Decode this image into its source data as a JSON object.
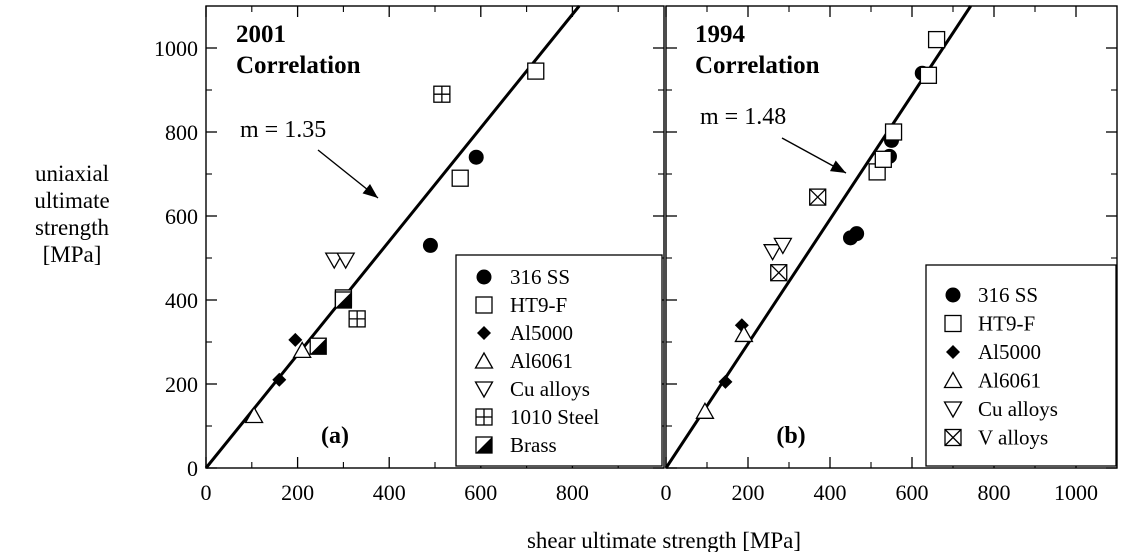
{
  "y_axis_title_lines": [
    "uniaxial",
    "ultimate",
    "strength",
    "[MPa]"
  ],
  "x_axis_title": "shear ultimate strength [MPa]",
  "chart_data": [
    {
      "type": "scatter",
      "panel_tag": "(a)",
      "title_lines": [
        "2001",
        "Correlation"
      ],
      "slope_label": "m = 1.35",
      "slope": 1.35,
      "xlim": [
        0,
        1000
      ],
      "ylim": [
        0,
        1100
      ],
      "x_ticks": [
        0,
        200,
        400,
        600,
        800
      ],
      "y_ticks": [
        0,
        200,
        400,
        600,
        800,
        1000
      ],
      "legend_position": "bottom-right",
      "series": [
        {
          "name": "316 SS",
          "marker": "circle",
          "points": [
            [
              490,
              530
            ],
            [
              590,
              740
            ]
          ]
        },
        {
          "name": "HT9-F",
          "marker": "square",
          "points": [
            [
              300,
              405
            ],
            [
              555,
              690
            ],
            [
              720,
              945
            ]
          ]
        },
        {
          "name": "Al5000",
          "marker": "diamond",
          "points": [
            [
              160,
              210
            ],
            [
              195,
              305
            ]
          ]
        },
        {
          "name": "Al6061",
          "marker": "triangle-up",
          "points": [
            [
              105,
              125
            ],
            [
              210,
              280
            ]
          ]
        },
        {
          "name": "Cu alloys",
          "marker": "triangle-down",
          "points": [
            [
              280,
              495
            ],
            [
              305,
              495
            ]
          ]
        },
        {
          "name": "1010 Steel",
          "marker": "square-plus",
          "points": [
            [
              515,
              890
            ],
            [
              330,
              355
            ]
          ]
        },
        {
          "name": "Brass",
          "marker": "half-square",
          "points": [
            [
              245,
              290
            ],
            [
              300,
              400
            ]
          ]
        }
      ]
    },
    {
      "type": "scatter",
      "panel_tag": "(b)",
      "title_lines": [
        "1994",
        "Correlation"
      ],
      "slope_label": "m = 1.48",
      "slope": 1.48,
      "xlim": [
        0,
        1100
      ],
      "ylim": [
        0,
        1100
      ],
      "x_ticks": [
        0,
        200,
        400,
        600,
        800,
        1000
      ],
      "y_ticks": [
        0,
        200,
        400,
        600,
        800,
        1000
      ],
      "legend_position": "bottom-right",
      "series": [
        {
          "name": "316 SS",
          "marker": "circle",
          "points": [
            [
              450,
              548
            ],
            [
              465,
              558
            ],
            [
              545,
              742
            ],
            [
              550,
              780
            ],
            [
              625,
              940
            ]
          ]
        },
        {
          "name": "HT9-F",
          "marker": "square",
          "points": [
            [
              515,
              705
            ],
            [
              530,
              735
            ],
            [
              555,
              800
            ],
            [
              640,
              935
            ],
            [
              660,
              1020
            ]
          ]
        },
        {
          "name": "Al5000",
          "marker": "diamond",
          "points": [
            [
              145,
              205
            ],
            [
              185,
              340
            ]
          ]
        },
        {
          "name": "Al6061",
          "marker": "triangle-up",
          "points": [
            [
              95,
              135
            ],
            [
              190,
              318
            ]
          ]
        },
        {
          "name": "Cu alloys",
          "marker": "triangle-down",
          "points": [
            [
              260,
              515
            ],
            [
              285,
              530
            ]
          ]
        },
        {
          "name": "V alloys",
          "marker": "square-x",
          "points": [
            [
              275,
              465
            ],
            [
              370,
              645
            ]
          ]
        }
      ]
    }
  ]
}
